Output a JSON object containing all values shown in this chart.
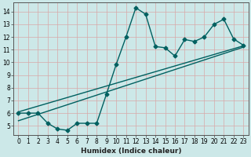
{
  "title": "",
  "xlabel": "Humidex (Indice chaleur)",
  "ylabel": "",
  "bg_color": "#cce8e8",
  "plot_bg_color": "#cce8e8",
  "line_color": "#006060",
  "xlim": [
    -0.5,
    23.5
  ],
  "ylim": [
    4.3,
    14.7
  ],
  "xticks": [
    0,
    1,
    2,
    3,
    4,
    5,
    6,
    7,
    8,
    9,
    10,
    11,
    12,
    13,
    14,
    15,
    16,
    17,
    18,
    19,
    20,
    21,
    22,
    23
  ],
  "yticks": [
    5,
    6,
    7,
    8,
    9,
    10,
    11,
    12,
    13,
    14
  ],
  "curve_x": [
    0,
    1,
    2,
    3,
    4,
    5,
    6,
    7,
    8,
    9,
    10,
    11,
    12,
    13,
    14,
    15,
    16,
    17,
    18,
    19,
    20,
    21,
    22,
    23
  ],
  "curve_y": [
    6.0,
    6.0,
    6.0,
    5.2,
    4.75,
    4.65,
    5.2,
    5.2,
    5.2,
    7.5,
    9.85,
    12.0,
    14.3,
    13.8,
    11.25,
    11.15,
    10.5,
    11.8,
    11.65,
    12.0,
    13.0,
    13.4,
    11.85,
    11.35
  ],
  "trend1_x": [
    0,
    23
  ],
  "trend1_y": [
    5.4,
    11.2
  ],
  "trend2_x": [
    0,
    23
  ],
  "trend2_y": [
    6.1,
    11.3
  ],
  "grid_color": "#d8a8a8",
  "marker": "D",
  "markersize": 2.5,
  "linewidth": 1.0,
  "tick_fontsize": 5.5,
  "label_fontsize": 6.5,
  "label_fontweight": "bold"
}
